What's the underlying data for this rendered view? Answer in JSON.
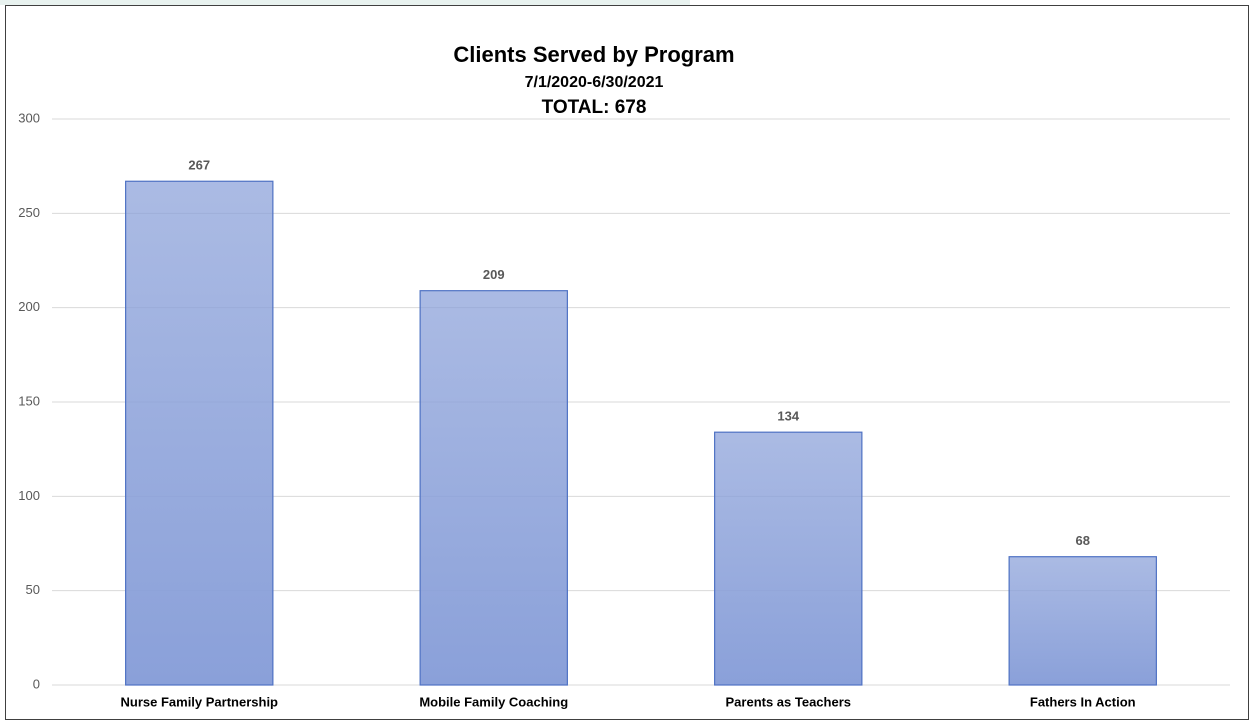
{
  "chart_data": {
    "type": "bar",
    "title": "Clients Served by Program",
    "subtitle": "7/1/2020-6/30/2021",
    "total_label": "TOTAL: 678",
    "categories": [
      "Nurse Family Partnership",
      "Mobile Family Coaching",
      "Parents as Teachers",
      "Fathers In Action"
    ],
    "values": [
      267,
      209,
      134,
      68
    ],
    "color": "#8aa0d9",
    "ylim": [
      0,
      300
    ],
    "yticks": [
      0,
      50,
      100,
      150,
      200,
      250,
      300
    ],
    "grid": true
  }
}
